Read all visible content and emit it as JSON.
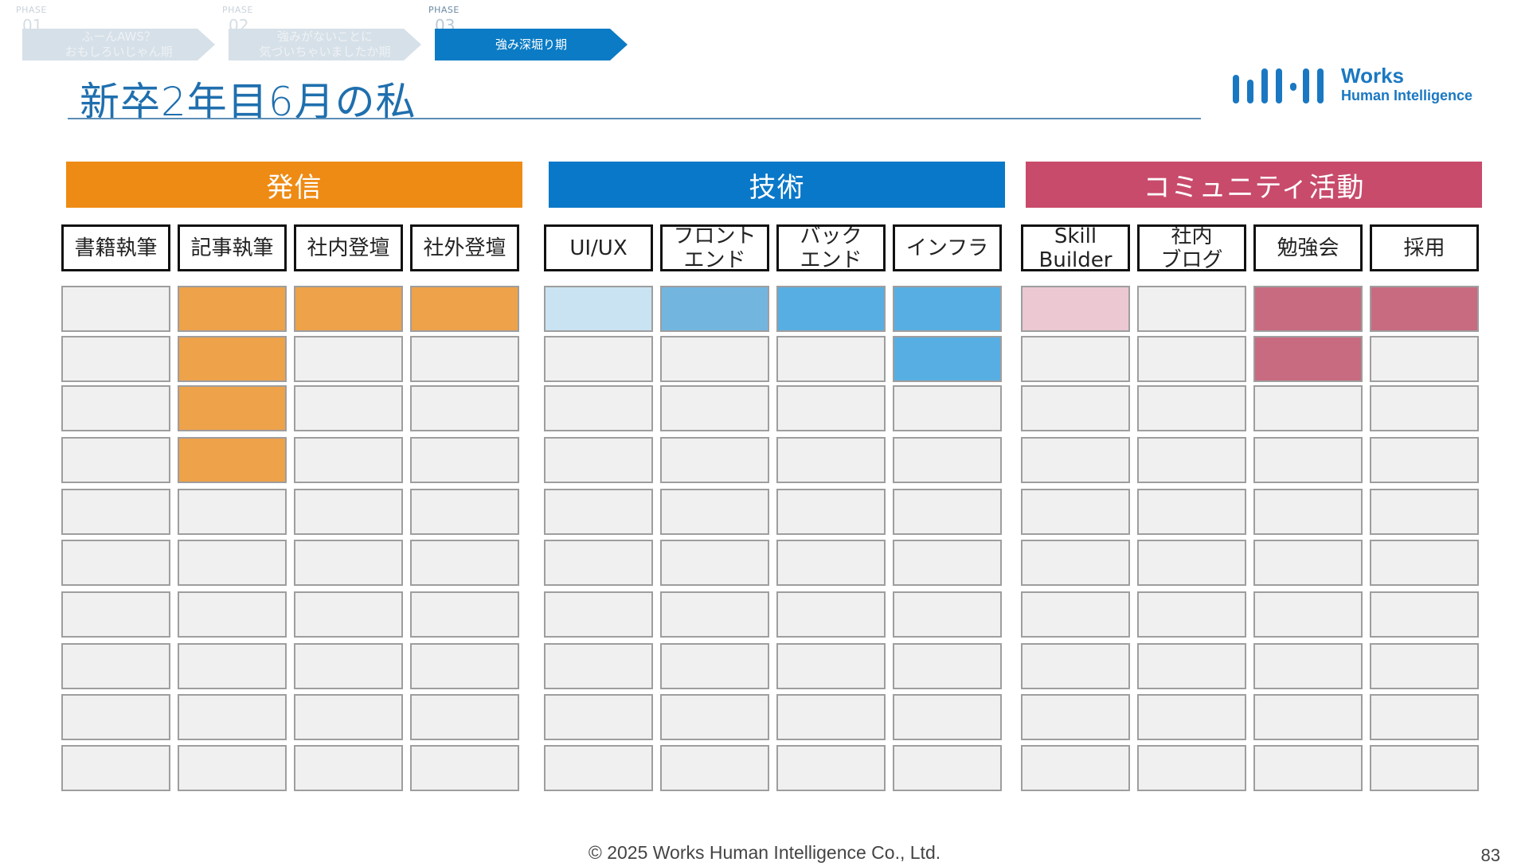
{
  "phases": [
    {
      "tag": "PHASE",
      "num": "01",
      "label": "ふーんAWS？\nおもしろいじゃん期",
      "active": false
    },
    {
      "tag": "PHASE",
      "num": "02",
      "label": "強みがないことに\n気づいちゃいましたか期",
      "active": false
    },
    {
      "tag": "PHASE",
      "num": "03",
      "label": "強み深堀り期",
      "active": true
    }
  ],
  "title": "新卒2年目6月の私",
  "logo": {
    "line1": "Works",
    "line2": "Human Intelligence",
    "bar_color": "#1a78c2"
  },
  "categories": [
    {
      "label": "発信",
      "color": "#ee8b15",
      "columns": [
        {
          "label": "書籍執筆",
          "filled": [
            null,
            null,
            null,
            null,
            null,
            null,
            null,
            null,
            null,
            null
          ]
        },
        {
          "label": "記事執筆",
          "filled": [
            "#eea24a",
            "#eea24a",
            "#eea24a",
            "#eea24a",
            null,
            null,
            null,
            null,
            null,
            null
          ]
        },
        {
          "label": "社内登壇",
          "filled": [
            "#eea24a",
            null,
            null,
            null,
            null,
            null,
            null,
            null,
            null,
            null
          ]
        },
        {
          "label": "社外登壇",
          "filled": [
            "#eea24a",
            null,
            null,
            null,
            null,
            null,
            null,
            null,
            null,
            null
          ]
        }
      ]
    },
    {
      "label": "技術",
      "color": "#0a78c8",
      "columns": [
        {
          "label": "UI/UX",
          "filled": [
            "#c9e3f3",
            null,
            null,
            null,
            null,
            null,
            null,
            null,
            null,
            null
          ]
        },
        {
          "label": "フロント\nエンド",
          "filled": [
            "#72b6e0",
            null,
            null,
            null,
            null,
            null,
            null,
            null,
            null,
            null
          ]
        },
        {
          "label": "バック\nエンド",
          "filled": [
            "#57aee2",
            null,
            null,
            null,
            null,
            null,
            null,
            null,
            null,
            null
          ]
        },
        {
          "label": "インフラ",
          "filled": [
            "#57aee2",
            "#57aee2",
            null,
            null,
            null,
            null,
            null,
            null,
            null,
            null
          ]
        }
      ]
    },
    {
      "label": "コミュニティ活動",
      "color": "#c84b6b",
      "columns": [
        {
          "label": "Skill\nBuilder",
          "filled": [
            "#ebc8d2",
            null,
            null,
            null,
            null,
            null,
            null,
            null,
            null,
            null
          ]
        },
        {
          "label": "社内\nブログ",
          "filled": [
            null,
            null,
            null,
            null,
            null,
            null,
            null,
            null,
            null,
            null
          ]
        },
        {
          "label": "勉強会",
          "filled": [
            "#c86a80",
            "#c86a80",
            null,
            null,
            null,
            null,
            null,
            null,
            null,
            null
          ]
        },
        {
          "label": "採用",
          "filled": [
            "#c86a80",
            null,
            null,
            null,
            null,
            null,
            null,
            null,
            null,
            null
          ]
        }
      ]
    }
  ],
  "footer": "© 2025 Works Human Intelligence Co., Ltd.",
  "page_number": "83"
}
